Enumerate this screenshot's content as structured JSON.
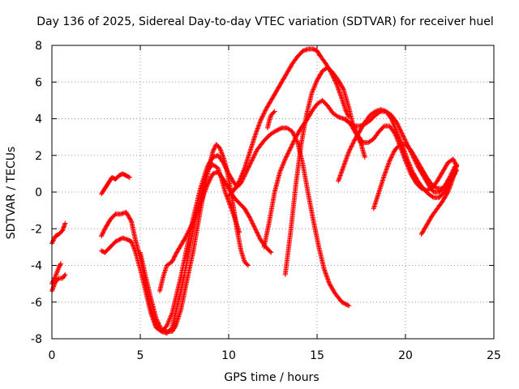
{
  "chart_data": {
    "type": "scatter",
    "title": "Day 136 of 2025, Sidereal Day-to-day VTEC variation (SDTVAR) for receiver huel",
    "xlabel": "GPS time / hours",
    "ylabel": "SDTVAR / TECUs",
    "xlim": [
      0,
      25
    ],
    "ylim": [
      -8,
      8
    ],
    "x_ticks": [
      0,
      5,
      10,
      15,
      20,
      25
    ],
    "y_ticks": [
      -8,
      -6,
      -4,
      -2,
      0,
      2,
      4,
      6,
      8
    ],
    "grid": true,
    "marker": "+",
    "color": "#ff0000",
    "series": [
      {
        "x": [
          0.0,
          0.2,
          0.4,
          0.6,
          0.75
        ],
        "y": [
          -2.8,
          -2.4,
          -2.3,
          -2.1,
          -1.7
        ]
      },
      {
        "x": [
          0.0,
          0.2,
          0.4,
          0.5
        ],
        "y": [
          -5.0,
          -4.6,
          -4.1,
          -3.9
        ]
      },
      {
        "x": [
          0.0,
          0.2,
          0.4,
          0.6,
          0.75
        ],
        "y": [
          -5.4,
          -4.9,
          -4.7,
          -4.7,
          -4.5
        ]
      },
      {
        "x": [
          2.8,
          3.0,
          3.2,
          3.4,
          3.6,
          3.8,
          4.0,
          4.2,
          4.4
        ],
        "y": [
          -0.1,
          0.2,
          0.5,
          0.8,
          0.7,
          0.9,
          1.0,
          0.9,
          0.8
        ]
      },
      {
        "x": [
          2.8,
          3.0,
          3.3,
          3.6,
          4.0,
          4.3,
          4.5,
          4.7,
          5.0,
          5.3,
          5.6,
          5.9,
          6.2,
          6.5,
          6.8,
          7.0,
          7.3,
          7.6,
          8.0,
          8.4,
          8.8,
          9.1,
          9.4,
          9.7,
          10.0,
          10.3,
          10.5,
          10.7,
          11.0,
          11.3,
          11.6,
          12.0,
          12.3,
          12.6,
          13.0,
          13.3,
          13.6,
          13.9,
          14.2,
          14.5,
          14.8,
          15.1,
          15.4,
          15.7,
          16.0,
          16.4,
          16.8
        ],
        "y": [
          -3.2,
          -3.3,
          -3.0,
          -2.7,
          -2.5,
          -2.6,
          -2.7,
          -3.2,
          -4.2,
          -5.4,
          -6.6,
          -7.4,
          -7.6,
          -7.3,
          -6.6,
          -5.8,
          -4.6,
          -3.2,
          -1.4,
          0.2,
          1.4,
          1.9,
          2.0,
          1.6,
          1.0,
          0.5,
          0.3,
          0.5,
          1.1,
          1.7,
          2.3,
          2.8,
          3.1,
          3.3,
          3.5,
          3.5,
          3.3,
          2.7,
          1.5,
          -0.1,
          -1.6,
          -3.0,
          -4.2,
          -5.0,
          -5.5,
          -6.0,
          -6.2
        ]
      },
      {
        "x": [
          2.8,
          3.0,
          3.3,
          3.6,
          3.9,
          4.2,
          4.5,
          4.7,
          5.0,
          5.3,
          5.6,
          5.9,
          6.2,
          6.5,
          6.8,
          7.0,
          7.3,
          7.6,
          8.0,
          8.4,
          8.8,
          9.1,
          9.4,
          9.6,
          9.8,
          10.0,
          10.3,
          10.6
        ],
        "y": [
          -2.4,
          -2.0,
          -1.5,
          -1.2,
          -1.2,
          -1.1,
          -1.6,
          -2.5,
          -3.6,
          -5.0,
          -6.4,
          -7.3,
          -7.6,
          -7.7,
          -7.4,
          -6.6,
          -5.4,
          -4.0,
          -2.0,
          -0.2,
          1.2,
          1.5,
          1.3,
          0.7,
          0.0,
          -0.5,
          -1.3,
          -2.2
        ]
      },
      {
        "x": [
          5.0,
          5.3,
          5.6,
          5.9,
          6.2,
          6.5,
          6.8,
          7.0,
          7.3,
          7.6,
          8.0,
          8.4,
          8.8,
          9.1,
          9.3,
          9.5,
          9.7,
          9.9,
          10.1,
          10.3,
          10.5,
          10.7,
          10.9,
          11.1
        ],
        "y": [
          -3.3,
          -4.6,
          -5.8,
          -6.9,
          -7.5,
          -7.6,
          -7.6,
          -7.3,
          -6.4,
          -5.0,
          -3.2,
          -1.0,
          1.0,
          2.2,
          2.6,
          2.4,
          1.9,
          1.2,
          0.2,
          -1.0,
          -2.2,
          -3.2,
          -3.8,
          -4.0
        ]
      },
      {
        "x": [
          6.1,
          6.3,
          6.5,
          6.8,
          7.0,
          7.3,
          7.6,
          8.0,
          8.4,
          8.8,
          9.1,
          9.4,
          9.7,
          10.0,
          10.3,
          10.6,
          10.9,
          11.2,
          11.5,
          11.8,
          12.1,
          12.3,
          12.4
        ],
        "y": [
          -5.4,
          -4.6,
          -4.0,
          -3.8,
          -3.4,
          -2.9,
          -2.4,
          -1.6,
          -0.6,
          0.4,
          1.0,
          1.1,
          0.7,
          0.2,
          -0.3,
          -0.6,
          -0.9,
          -1.4,
          -2.0,
          -2.6,
          -3.0,
          -3.2,
          -3.3
        ]
      },
      {
        "x": [
          10.0,
          10.3,
          10.6,
          10.9,
          11.2,
          11.5,
          11.8,
          12.1,
          12.4,
          12.7,
          13.0,
          13.3,
          13.6,
          13.9,
          14.2,
          14.5,
          14.8,
          15.0,
          15.2,
          15.5,
          15.8,
          16.1,
          16.4,
          16.6,
          16.8
        ],
        "y": [
          -0.2,
          0.1,
          0.6,
          1.3,
          2.2,
          3.1,
          3.9,
          4.5,
          5.0,
          5.5,
          6.0,
          6.5,
          7.0,
          7.4,
          7.7,
          7.8,
          7.8,
          7.7,
          7.4,
          7.0,
          6.5,
          5.9,
          5.1,
          4.5,
          4.1
        ]
      },
      {
        "x": [
          13.2,
          13.5,
          13.8,
          14.1,
          14.4,
          14.7,
          15.0,
          15.3,
          15.6,
          15.9,
          16.2,
          16.5,
          16.8,
          17.0,
          17.3,
          17.6,
          17.9,
          18.2,
          18.5,
          18.8,
          19.1,
          19.4,
          19.7,
          20.0,
          20.3,
          20.6,
          20.9,
          21.2,
          21.5,
          21.8,
          22.1,
          22.4,
          22.7,
          22.9
        ],
        "y": [
          -4.5,
          -2.2,
          0.4,
          2.6,
          4.2,
          5.4,
          6.1,
          6.6,
          6.8,
          6.5,
          6.1,
          5.6,
          4.6,
          3.8,
          3.1,
          2.7,
          2.7,
          2.9,
          3.3,
          3.6,
          3.6,
          3.2,
          2.5,
          1.7,
          1.0,
          0.5,
          0.2,
          0.1,
          0.2,
          0.6,
          1.1,
          1.6,
          1.8,
          1.4
        ]
      },
      {
        "x": [
          12.0,
          12.3,
          12.6,
          12.9,
          13.2,
          13.5,
          13.8,
          14.1,
          14.4,
          14.7,
          15.0,
          15.3,
          15.6,
          15.9,
          16.2,
          16.5,
          16.8,
          17.1,
          17.4,
          17.7,
          18.0,
          18.3,
          18.6,
          18.9,
          19.2,
          19.5,
          19.8,
          20.1,
          20.4,
          20.7,
          21.0,
          21.3,
          21.6,
          21.9,
          22.2,
          22.5,
          22.8
        ],
        "y": [
          -3.0,
          -1.6,
          0.0,
          1.1,
          1.8,
          2.4,
          3.0,
          3.5,
          3.9,
          4.4,
          4.8,
          5.0,
          4.7,
          4.3,
          4.1,
          4.0,
          3.8,
          3.6,
          3.6,
          3.7,
          3.9,
          4.2,
          4.4,
          4.4,
          4.2,
          3.8,
          3.2,
          2.6,
          2.0,
          1.4,
          0.9,
          0.4,
          0.0,
          0.0,
          0.3,
          0.8,
          1.4
        ]
      },
      {
        "x": [
          16.2,
          16.5,
          16.8,
          17.1,
          17.4,
          17.7,
          18.0,
          18.3,
          18.6,
          18.9,
          19.2,
          19.5,
          19.8,
          20.1,
          20.4,
          20.7,
          21.0,
          21.3,
          21.6,
          21.9,
          22.2,
          22.5,
          22.8
        ],
        "y": [
          0.6,
          1.4,
          2.2,
          2.8,
          3.3,
          3.8,
          4.2,
          4.4,
          4.5,
          4.4,
          4.0,
          3.3,
          2.6,
          1.8,
          1.1,
          0.6,
          0.2,
          -0.1,
          -0.3,
          -0.3,
          0.0,
          0.5,
          1.0
        ]
      },
      {
        "x": [
          18.2,
          18.5,
          18.8,
          19.1,
          19.4,
          19.7,
          20.0,
          20.3,
          20.6,
          20.9,
          21.2,
          21.5,
          21.8,
          22.1,
          22.4,
          22.7,
          22.9
        ],
        "y": [
          -0.9,
          0.0,
          0.9,
          1.7,
          2.3,
          2.6,
          2.6,
          2.3,
          1.8,
          1.3,
          0.8,
          0.4,
          0.2,
          0.2,
          0.5,
          0.9,
          1.2
        ]
      },
      {
        "x": [
          20.9,
          21.2,
          21.5,
          21.8,
          22.1,
          22.4,
          22.6,
          22.8,
          22.9
        ],
        "y": [
          -2.3,
          -1.8,
          -1.3,
          -0.9,
          -0.5,
          0.0,
          0.5,
          1.1,
          1.5
        ]
      },
      {
        "x": [
          12.2,
          12.3,
          12.4,
          12.6
        ],
        "y": [
          3.5,
          3.9,
          4.2,
          4.4
        ]
      },
      {
        "x": [
          16.6,
          16.9,
          17.2,
          17.5,
          17.7
        ],
        "y": [
          4.0,
          3.7,
          3.2,
          2.6,
          1.9
        ]
      }
    ]
  }
}
